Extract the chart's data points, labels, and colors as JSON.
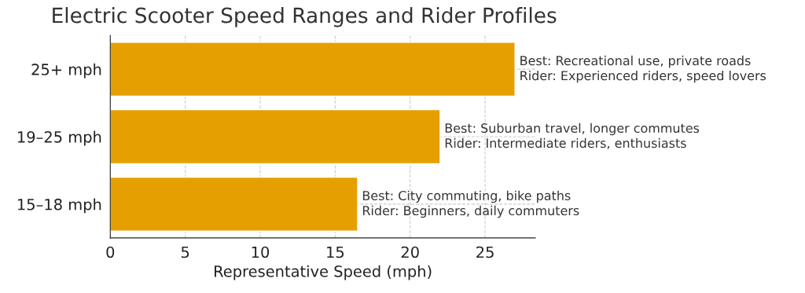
{
  "chart_data": {
    "type": "bar",
    "orientation": "horizontal",
    "title": "Electric Scooter Speed Ranges and Rider Profiles",
    "xlabel": "Representative Speed (mph)",
    "categories": [
      "25+ mph",
      "19–25 mph",
      "15–18 mph"
    ],
    "values": [
      27,
      22,
      16.5
    ],
    "color": "#e69f00",
    "xlim": [
      0,
      28.35
    ],
    "xticks": [
      0,
      5,
      10,
      15,
      20,
      25
    ],
    "grid": true,
    "annotations": [
      {
        "text": "Best: Recreational use, private roads\nRider: Experienced riders, speed lovers",
        "x": 27,
        "y": "25+ mph"
      },
      {
        "text": "Best: Suburban travel, longer commutes\nRider: Intermediate riders, enthusiasts",
        "x": 22,
        "y": "19–25 mph"
      },
      {
        "text": "Best: City commuting, bike paths\nRider: Beginners, daily commuters",
        "x": 16.5,
        "y": "15–18 mph"
      }
    ]
  }
}
